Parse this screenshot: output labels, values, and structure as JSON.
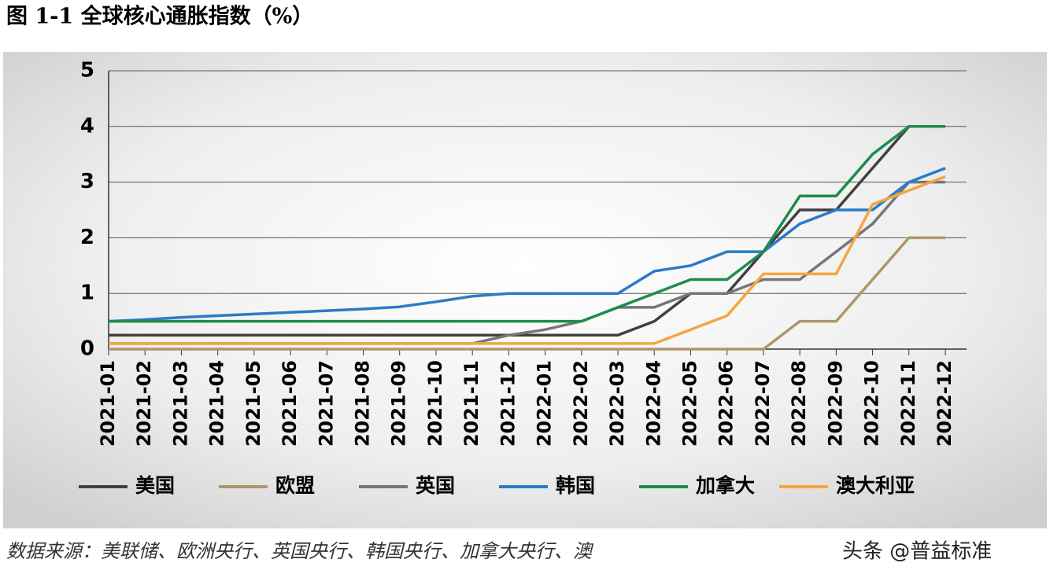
{
  "chart_data": {
    "type": "line",
    "title": "图 1-1  全球核心通胀指数（%）",
    "source": "数据来源：美联储、欧洲央行、英国央行、韩国央行、加拿大央行、澳",
    "watermark": "头条 @普益标准",
    "categories": [
      "2021-01",
      "2021-02",
      "2021-03",
      "2021-04",
      "2021-05",
      "2021-06",
      "2021-07",
      "2021-08",
      "2021-09",
      "2021-10",
      "2021-11",
      "2021-12",
      "2022-01",
      "2022-02",
      "2022-03",
      "2022-04",
      "2022-05",
      "2022-06",
      "2022-07",
      "2022-08",
      "2022-09",
      "2022-10",
      "2022-11",
      "2022-12"
    ],
    "ylim": [
      0,
      5
    ],
    "yticks": [
      0,
      1,
      2,
      3,
      4,
      5
    ],
    "grid": true,
    "series": [
      {
        "name": "美国",
        "color": "#404040",
        "values": [
          0.25,
          0.25,
          0.25,
          0.25,
          0.25,
          0.25,
          0.25,
          0.25,
          0.25,
          0.25,
          0.25,
          0.25,
          0.25,
          0.25,
          0.25,
          0.5,
          1.0,
          1.0,
          1.75,
          2.5,
          2.5,
          3.25,
          4.0,
          4.0
        ]
      },
      {
        "name": "欧盟",
        "color": "#b0956a",
        "values": [
          0,
          0,
          0,
          0,
          0,
          0,
          0,
          0,
          0,
          0,
          0,
          0,
          0,
          0,
          0,
          0,
          0,
          0,
          0,
          0.5,
          0.5,
          1.25,
          2.0,
          2.0
        ]
      },
      {
        "name": "英国",
        "color": "#767676",
        "values": [
          0.1,
          0.1,
          0.1,
          0.1,
          0.1,
          0.1,
          0.1,
          0.1,
          0.1,
          0.1,
          0.1,
          0.25,
          0.35,
          0.5,
          0.75,
          0.75,
          1.0,
          1.0,
          1.25,
          1.25,
          1.75,
          2.25,
          3.0,
          3.0
        ]
      },
      {
        "name": "韩国",
        "color": "#2a7bc8",
        "values": [
          0.5,
          0.53,
          0.57,
          0.6,
          0.63,
          0.66,
          0.69,
          0.72,
          0.76,
          0.85,
          0.95,
          1.0,
          1.0,
          1.0,
          1.0,
          1.4,
          1.5,
          1.75,
          1.75,
          2.25,
          2.5,
          2.5,
          3.0,
          3.25
        ]
      },
      {
        "name": "加拿大",
        "color": "#1e8c4a",
        "values": [
          0.5,
          0.5,
          0.5,
          0.5,
          0.5,
          0.5,
          0.5,
          0.5,
          0.5,
          0.5,
          0.5,
          0.5,
          0.5,
          0.5,
          0.75,
          1.0,
          1.25,
          1.25,
          1.75,
          2.75,
          2.75,
          3.5,
          4.0,
          4.0
        ]
      },
      {
        "name": "澳大利亚",
        "color": "#f4a640",
        "values": [
          0.1,
          0.1,
          0.1,
          0.1,
          0.1,
          0.1,
          0.1,
          0.1,
          0.1,
          0.1,
          0.1,
          0.1,
          0.1,
          0.1,
          0.1,
          0.1,
          0.35,
          0.6,
          1.35,
          1.35,
          1.35,
          2.6,
          2.85,
          3.1
        ]
      }
    ]
  }
}
